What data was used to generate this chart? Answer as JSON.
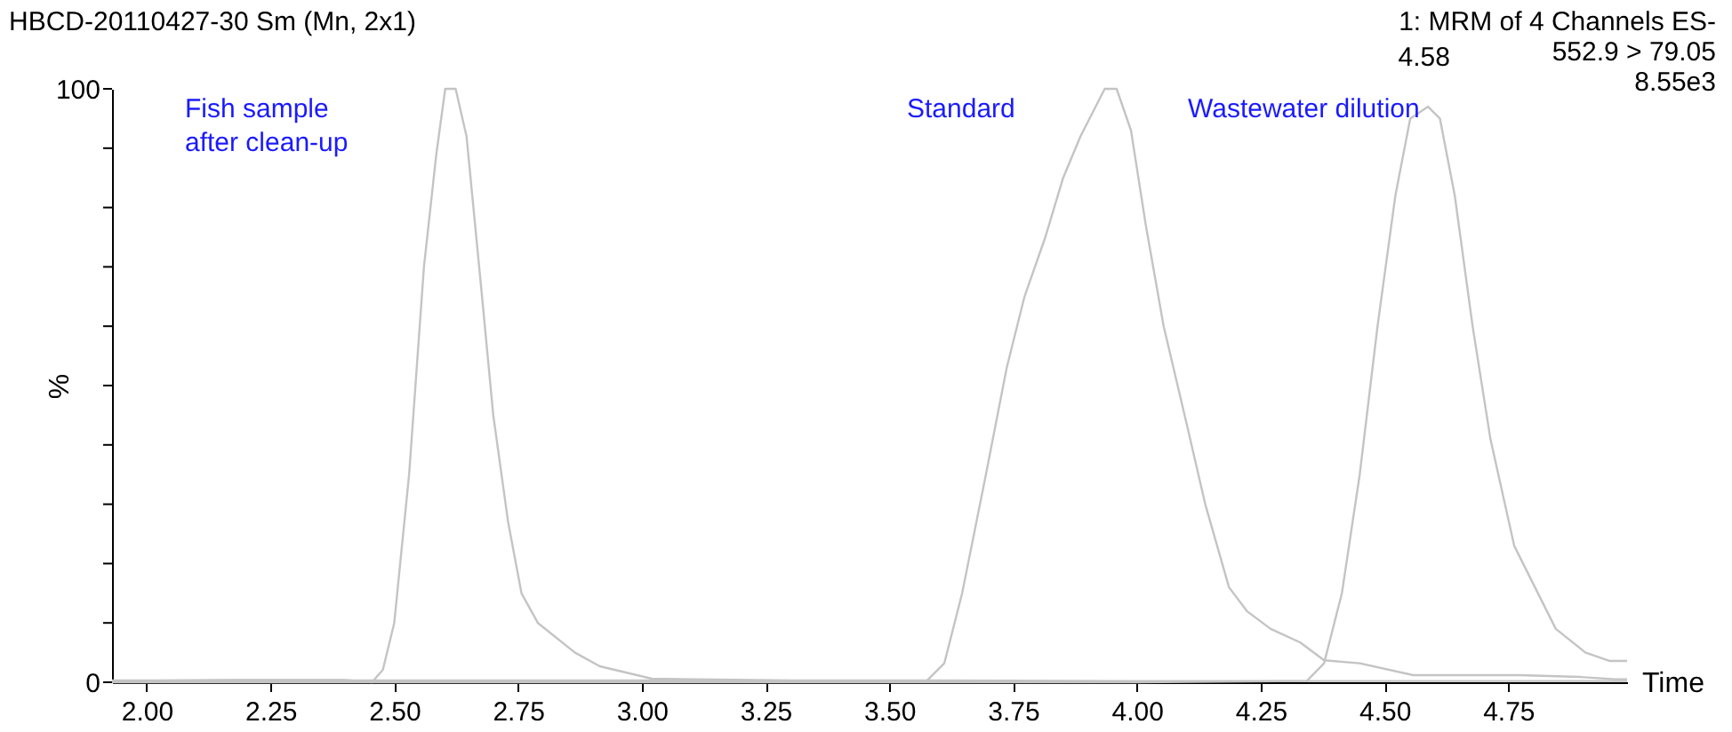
{
  "chart_data": {
    "type": "line",
    "title": "HBCD-20110427-30 Sm (Mn, 2x1)",
    "xlabel": "Time",
    "ylabel": "%",
    "xlim": [
      1.93,
      4.99
    ],
    "ylim": [
      0,
      100
    ],
    "xticks": [
      {
        "value": 2,
        "label": "2.00"
      },
      {
        "value": 2.25,
        "label": "2.25"
      },
      {
        "value": 2.5,
        "label": "2.50"
      },
      {
        "value": 2.75,
        "label": "2.75"
      },
      {
        "value": 3,
        "label": "3.00"
      },
      {
        "value": 3.25,
        "label": "3.25"
      },
      {
        "value": 3.5,
        "label": "3.50"
      },
      {
        "value": 3.75,
        "label": "3.75"
      },
      {
        "value": 4,
        "label": "4.00"
      },
      {
        "value": 4.25,
        "label": "4.25"
      },
      {
        "value": 4.5,
        "label": "4.50"
      },
      {
        "value": 4.75,
        "label": "4.75"
      }
    ],
    "yticks": [
      0,
      {
        "value": 10,
        "label": null
      },
      {
        "value": 20,
        "label": null
      },
      {
        "value": 30,
        "label": null
      },
      {
        "value": 40,
        "label": null
      },
      {
        "value": 50,
        "label": null
      },
      {
        "value": 60,
        "label": null
      },
      {
        "value": 70,
        "label": null
      },
      {
        "value": 80,
        "label": null
      },
      {
        "value": 90,
        "label": null
      },
      100
    ],
    "grid": false,
    "marker": "none",
    "line_style": "solid",
    "series": [
      {
        "color": "#c4c4c4",
        "x": [
          1.93,
          2.2,
          2.4,
          2.455,
          2.477,
          2.5,
          2.53,
          2.56,
          2.585,
          2.603,
          2.624,
          2.646,
          2.675,
          2.7,
          2.73,
          2.757,
          2.79,
          2.865,
          2.915,
          3.02,
          3.3,
          3.6,
          4.0,
          4.5,
          4.99
        ],
        "values": [
          0.2,
          0.4,
          0.4,
          0,
          2.1,
          10,
          35,
          70,
          89,
          100,
          100,
          92,
          67,
          45,
          27,
          15,
          10,
          5,
          2.7,
          0.6,
          0.3,
          0.3,
          0.2,
          0.2,
          0.2
        ]
      },
      {
        "color": "#c4c4c4",
        "x": [
          1.93,
          3.0,
          3.575,
          3.611,
          3.647,
          3.695,
          3.737,
          3.773,
          3.815,
          3.851,
          3.886,
          3.935,
          3.959,
          3.988,
          4.018,
          4.054,
          4.102,
          4.138,
          4.186,
          4.222,
          4.27,
          4.33,
          4.378,
          4.45,
          4.558,
          4.654,
          4.774,
          4.894,
          4.966,
          4.99
        ],
        "values": [
          0.3,
          0.3,
          0.2,
          3.2,
          15,
          35,
          53,
          65,
          75,
          85,
          92,
          100,
          100,
          93,
          77,
          60,
          43,
          30,
          16,
          12,
          9,
          6.7,
          3.7,
          3.2,
          1.2,
          1.2,
          1.2,
          0.9,
          0.5,
          0.5
        ]
      },
      {
        "color": "#c4c4c4",
        "x": [
          1.93,
          3.0,
          4.0,
          4.343,
          4.378,
          4.414,
          4.45,
          4.486,
          4.522,
          4.552,
          4.588,
          4.612,
          4.642,
          4.678,
          4.714,
          4.762,
          4.846,
          4.906,
          4.954,
          4.99
        ],
        "values": [
          0,
          0,
          0,
          0.2,
          3.2,
          15,
          35,
          60,
          82,
          95,
          97,
          95,
          82,
          60,
          41,
          23,
          9,
          5,
          3.6,
          3.6
        ]
      }
    ],
    "annotations": [
      "Fish sample\nafter clean-up",
      "Standard",
      "Wastewater dilution",
      {
        "text": "4.58",
        "x": 4.58,
        "y": 97
      },
      "1: MRM of 4 Channels ES-",
      "552.9 > 79.05",
      "8.55e3"
    ]
  }
}
